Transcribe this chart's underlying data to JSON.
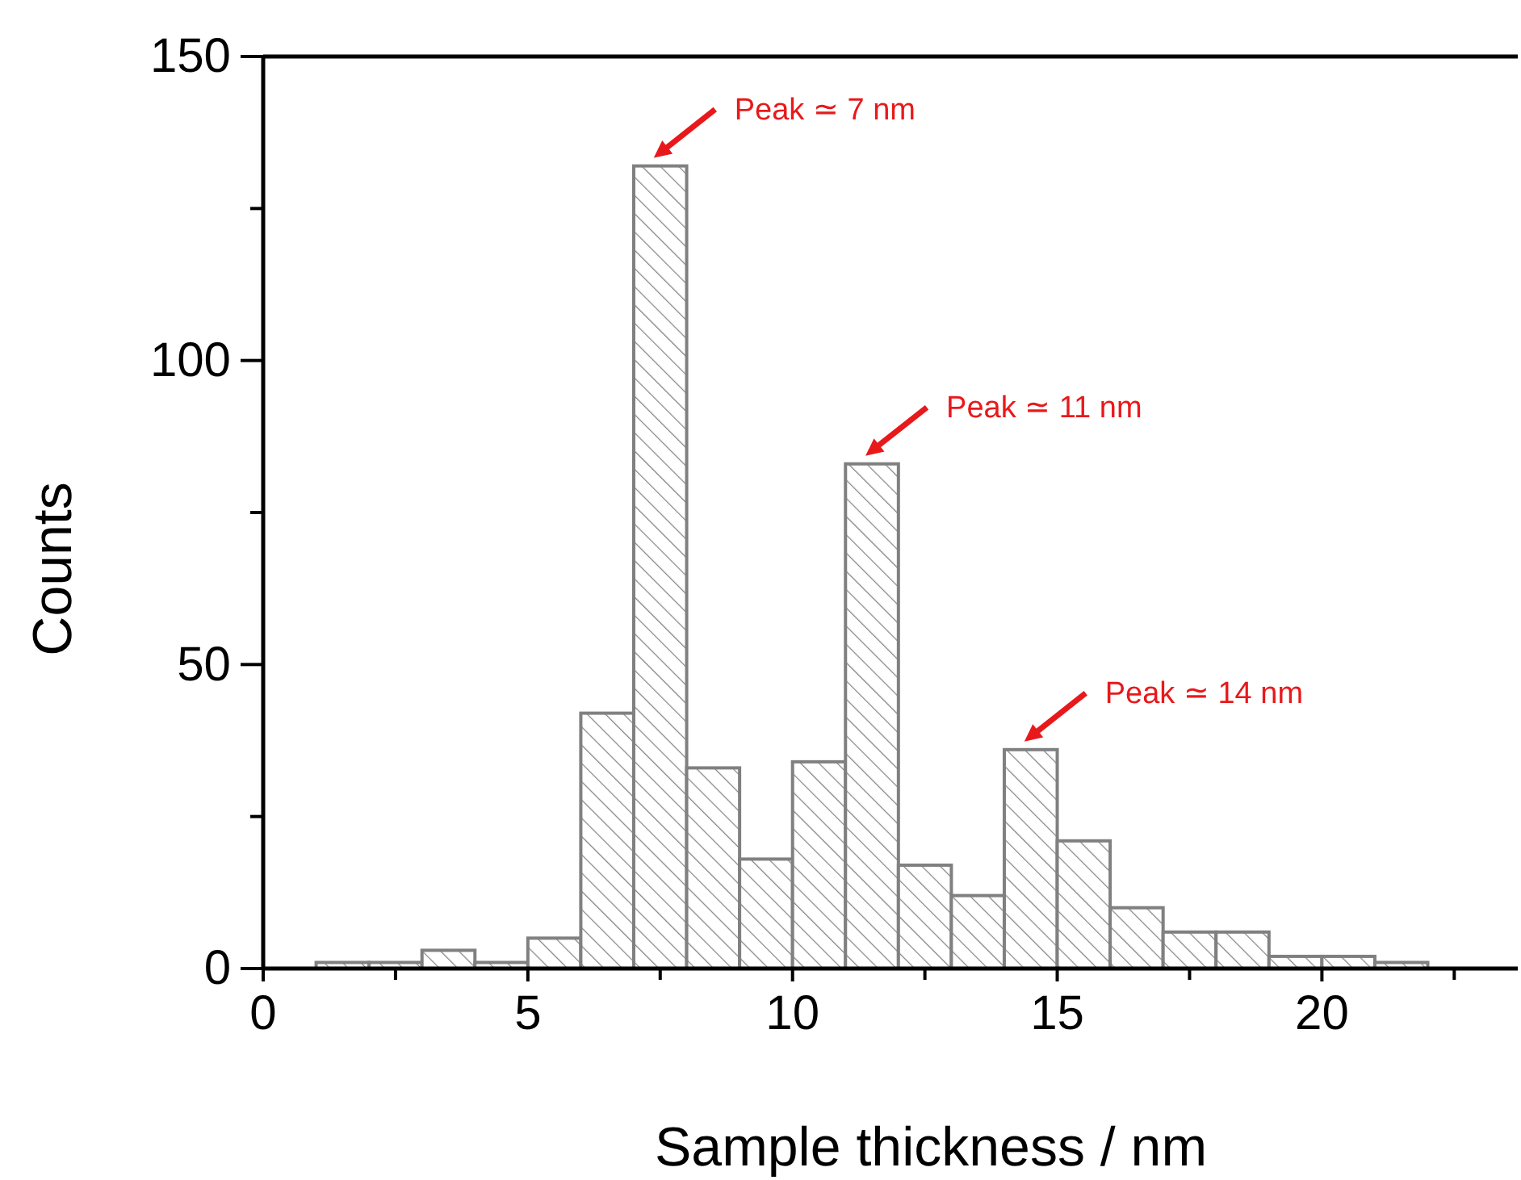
{
  "chart_data": {
    "type": "histogram",
    "xlabel": "Sample thickness / nm",
    "ylabel": "Counts",
    "bins": [
      1,
      2,
      3,
      4,
      5,
      6,
      7,
      8,
      9,
      10,
      11,
      12,
      13,
      14,
      15,
      16,
      17,
      18,
      19,
      20,
      21,
      22
    ],
    "values": [
      1,
      1,
      3,
      1,
      5,
      42,
      132,
      33,
      18,
      34,
      83,
      17,
      12,
      36,
      21,
      10,
      6,
      6,
      2,
      2,
      1
    ],
    "color": "#808080",
    "xlim": [
      0,
      23.7
    ],
    "ylim": [
      0,
      150
    ],
    "xticks": [
      0,
      {
        "value": 2.5,
        "label": null
      },
      5,
      {
        "value": 7.5,
        "label": null
      },
      10,
      {
        "value": 12.5,
        "label": null
      },
      15,
      {
        "value": 17.5,
        "label": null
      },
      20,
      {
        "value": 22.5,
        "label": null
      }
    ],
    "yticks": [
      0,
      {
        "value": 25,
        "label": null
      },
      50,
      {
        "value": 75,
        "label": null
      },
      100,
      {
        "value": 125,
        "label": null
      },
      150
    ],
    "annotations": [
      {
        "text": "Peak ≃ 7 nm",
        "x": 7.5,
        "y": 132
      },
      {
        "text": "Peak ≃ 11 nm",
        "x": 11.5,
        "y": 83
      },
      {
        "text": "Peak ≃ 14 nm",
        "x": 14.5,
        "y": 36
      }
    ]
  }
}
